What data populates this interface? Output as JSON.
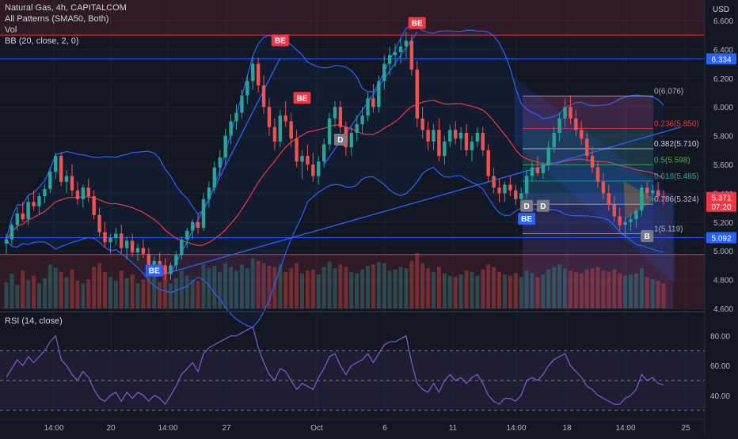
{
  "header": {
    "title": "Natural Gas, 4h, CAPITALCOM",
    "indicators": [
      "All Patterns (SMA50, Both)",
      "Vol",
      "BB (20, close, 2, 0)"
    ],
    "rsi_label": "RSI (14, close)",
    "currency": "USD"
  },
  "colors": {
    "background": "#131722",
    "up": "#26a69a",
    "down": "#ef5350",
    "bb_band": "#2962ff",
    "bb_basis": "#f23645",
    "rsi": "#7e57c2",
    "grid": "#1e2230",
    "level_line": "#2962ff"
  },
  "price_axis": {
    "ticks": [
      "6.600",
      "6.400",
      "6.200",
      "6.000",
      "5.800",
      "5.600",
      "5.400",
      "5.200",
      "5.000",
      "4.800",
      "4.600"
    ],
    "min": 4.6,
    "max": 6.6
  },
  "rsi_axis": {
    "ticks": [
      "80.00",
      "60.00",
      "40.00"
    ],
    "min": 25,
    "max": 92,
    "upper": 70,
    "lower": 30,
    "mid": 50
  },
  "time_axis": {
    "labels": [
      "14:00",
      "20",
      "14:00",
      "27",
      "Oct",
      "6",
      "11",
      "14:00",
      "18",
      "14:00",
      "25"
    ]
  },
  "price_badges": [
    {
      "text": "6.334",
      "value": 6.334,
      "color": "#2962ff"
    },
    {
      "text": "5.371",
      "value": 5.371,
      "color": "#f23645"
    },
    {
      "text": "07:20",
      "value": 5.31,
      "color": "#f23645"
    },
    {
      "text": "5.092",
      "value": 5.092,
      "color": "#2962ff"
    }
  ],
  "horizontal_levels": [
    6.5,
    6.334,
    5.092,
    4.975
  ],
  "fib_levels": [
    {
      "label": "0(6.076)",
      "value": 6.076,
      "color": "#b2b5be"
    },
    {
      "label": "0.236(5.850)",
      "value": 5.85,
      "color": "#f23645"
    },
    {
      "label": "0.382(5.710)",
      "value": 5.71,
      "color": "#d1d4dc"
    },
    {
      "label": "0.5(5.598)",
      "value": 5.598,
      "color": "#4caf50"
    },
    {
      "label": "0.618(5.485)",
      "value": 5.485,
      "color": "#26a69a"
    },
    {
      "label": "0.786(5.324)",
      "value": 5.324,
      "color": "#b2b5be"
    },
    {
      "label": "1(5.119)",
      "value": 5.119,
      "color": "#b2b5be"
    }
  ],
  "pattern_labels": [
    {
      "text": "BE",
      "kind": "bear",
      "value": 6.46,
      "index": 50
    },
    {
      "text": "BE",
      "kind": "bear",
      "value": 6.06,
      "index": 54
    },
    {
      "text": "BE",
      "kind": "bear",
      "value": 6.58,
      "index": 75
    },
    {
      "text": "D",
      "kind": "neutral",
      "value": 5.77,
      "index": 61
    },
    {
      "text": "BE",
      "kind": "bull",
      "value": 4.86,
      "index": 27
    },
    {
      "text": "D",
      "kind": "neutral",
      "value": 5.31,
      "index": 95
    },
    {
      "text": "D",
      "kind": "neutral",
      "value": 5.31,
      "index": 98
    },
    {
      "text": "BE",
      "kind": "bull",
      "value": 5.22,
      "index": 95
    },
    {
      "text": "B",
      "kind": "neutral",
      "value": 5.1,
      "index": 117
    }
  ],
  "chart_data": {
    "type": "candlestick",
    "symbol": "Natural Gas",
    "interval": "4h",
    "candles": [
      [
        5.05,
        5.12,
        4.98,
        5.08
      ],
      [
        5.08,
        5.2,
        5.04,
        5.18
      ],
      [
        5.18,
        5.3,
        5.14,
        5.26
      ],
      [
        5.26,
        5.34,
        5.2,
        5.22
      ],
      [
        5.22,
        5.38,
        5.18,
        5.34
      ],
      [
        5.34,
        5.42,
        5.28,
        5.31
      ],
      [
        5.31,
        5.4,
        5.25,
        5.38
      ],
      [
        5.38,
        5.46,
        5.33,
        5.43
      ],
      [
        5.43,
        5.58,
        5.4,
        5.55
      ],
      [
        5.55,
        5.68,
        5.5,
        5.66
      ],
      [
        5.66,
        5.69,
        5.45,
        5.48
      ],
      [
        5.48,
        5.56,
        5.4,
        5.52
      ],
      [
        5.52,
        5.6,
        5.38,
        5.42
      ],
      [
        5.42,
        5.48,
        5.32,
        5.36
      ],
      [
        5.36,
        5.46,
        5.3,
        5.44
      ],
      [
        5.44,
        5.5,
        5.34,
        5.38
      ],
      [
        5.38,
        5.42,
        5.22,
        5.25
      ],
      [
        5.25,
        5.3,
        5.1,
        5.13
      ],
      [
        5.13,
        5.2,
        5.02,
        5.06
      ],
      [
        5.06,
        5.12,
        4.98,
        5.09
      ],
      [
        5.09,
        5.16,
        5.04,
        5.12
      ],
      [
        5.12,
        5.18,
        4.98,
        5.02
      ],
      [
        5.02,
        5.1,
        4.94,
        5.07
      ],
      [
        5.07,
        5.12,
        4.96,
        4.99
      ],
      [
        4.99,
        5.05,
        4.93,
        5.02
      ],
      [
        5.02,
        5.08,
        4.95,
        4.98
      ],
      [
        4.98,
        5.02,
        4.86,
        4.89
      ],
      [
        4.89,
        4.96,
        4.83,
        4.93
      ],
      [
        4.93,
        4.99,
        4.86,
        4.9
      ],
      [
        4.9,
        4.95,
        4.8,
        4.84
      ],
      [
        4.84,
        4.92,
        4.8,
        4.9
      ],
      [
        4.9,
        5.0,
        4.86,
        4.97
      ],
      [
        4.97,
        5.1,
        4.94,
        5.08
      ],
      [
        5.08,
        5.16,
        5.02,
        5.14
      ],
      [
        5.14,
        5.22,
        5.08,
        5.2
      ],
      [
        5.2,
        5.26,
        5.12,
        5.16
      ],
      [
        5.16,
        5.4,
        5.14,
        5.36
      ],
      [
        5.36,
        5.48,
        5.3,
        5.44
      ],
      [
        5.44,
        5.62,
        5.4,
        5.58
      ],
      [
        5.58,
        5.7,
        5.52,
        5.65
      ],
      [
        5.65,
        5.85,
        5.6,
        5.8
      ],
      [
        5.8,
        5.95,
        5.74,
        5.9
      ],
      [
        5.9,
        6.02,
        5.84,
        5.96
      ],
      [
        5.96,
        6.12,
        5.92,
        6.08
      ],
      [
        6.08,
        6.22,
        6.02,
        6.18
      ],
      [
        6.18,
        6.35,
        6.12,
        6.3
      ],
      [
        6.3,
        6.34,
        6.1,
        6.15
      ],
      [
        6.15,
        6.22,
        5.95,
        6.0
      ],
      [
        6.0,
        6.06,
        5.8,
        5.86
      ],
      [
        5.86,
        5.92,
        5.7,
        5.76
      ],
      [
        5.76,
        5.98,
        5.72,
        5.94
      ],
      [
        5.94,
        6.04,
        5.86,
        5.9
      ],
      [
        5.9,
        5.96,
        5.72,
        5.78
      ],
      [
        5.78,
        5.84,
        5.58,
        5.62
      ],
      [
        5.62,
        5.7,
        5.5,
        5.66
      ],
      [
        5.66,
        5.74,
        5.56,
        5.6
      ],
      [
        5.6,
        5.68,
        5.48,
        5.52
      ],
      [
        5.52,
        5.66,
        5.46,
        5.62
      ],
      [
        5.62,
        5.78,
        5.58,
        5.74
      ],
      [
        5.74,
        5.96,
        5.7,
        5.92
      ],
      [
        5.92,
        6.04,
        5.86,
        6.0
      ],
      [
        6.0,
        6.04,
        5.82,
        5.86
      ],
      [
        5.86,
        5.9,
        5.66,
        5.72
      ],
      [
        5.72,
        5.86,
        5.66,
        5.82
      ],
      [
        5.82,
        5.94,
        5.76,
        5.88
      ],
      [
        5.88,
        6.0,
        5.82,
        5.94
      ],
      [
        5.94,
        6.1,
        5.9,
        6.06
      ],
      [
        6.06,
        6.16,
        5.96,
        6.0
      ],
      [
        6.0,
        6.22,
        5.96,
        6.18
      ],
      [
        6.18,
        6.36,
        6.12,
        6.3
      ],
      [
        6.3,
        6.42,
        6.22,
        6.36
      ],
      [
        6.36,
        6.44,
        6.28,
        6.38
      ],
      [
        6.38,
        6.48,
        6.3,
        6.42
      ],
      [
        6.42,
        6.52,
        6.34,
        6.46
      ],
      [
        6.46,
        6.5,
        6.22,
        6.26
      ],
      [
        6.26,
        6.32,
        5.86,
        5.92
      ],
      [
        5.92,
        6.0,
        5.78,
        5.84
      ],
      [
        5.84,
        5.9,
        5.7,
        5.76
      ],
      [
        5.76,
        5.88,
        5.7,
        5.84
      ],
      [
        5.84,
        5.92,
        5.62,
        5.66
      ],
      [
        5.66,
        5.8,
        5.6,
        5.76
      ],
      [
        5.76,
        5.88,
        5.72,
        5.84
      ],
      [
        5.84,
        5.9,
        5.74,
        5.78
      ],
      [
        5.78,
        5.86,
        5.7,
        5.82
      ],
      [
        5.82,
        5.88,
        5.66,
        5.7
      ],
      [
        5.7,
        5.8,
        5.62,
        5.76
      ],
      [
        5.76,
        5.86,
        5.72,
        5.82
      ],
      [
        5.82,
        5.86,
        5.66,
        5.7
      ],
      [
        5.7,
        5.74,
        5.48,
        5.52
      ],
      [
        5.52,
        5.58,
        5.4,
        5.44
      ],
      [
        5.44,
        5.5,
        5.34,
        5.4
      ],
      [
        5.4,
        5.48,
        5.34,
        5.46
      ],
      [
        5.46,
        5.52,
        5.38,
        5.42
      ],
      [
        5.42,
        5.46,
        5.32,
        5.36
      ],
      [
        5.36,
        5.44,
        5.3,
        5.4
      ],
      [
        5.4,
        5.56,
        5.36,
        5.52
      ],
      [
        5.52,
        5.62,
        5.48,
        5.58
      ],
      [
        5.58,
        5.66,
        5.52,
        5.54
      ],
      [
        5.54,
        5.62,
        5.5,
        5.6
      ],
      [
        5.6,
        5.76,
        5.56,
        5.72
      ],
      [
        5.72,
        5.86,
        5.68,
        5.82
      ],
      [
        5.82,
        5.96,
        5.76,
        5.92
      ],
      [
        5.92,
        6.06,
        5.86,
        6.0
      ],
      [
        6.0,
        6.08,
        5.88,
        5.92
      ],
      [
        5.92,
        5.98,
        5.8,
        5.84
      ],
      [
        5.84,
        5.9,
        5.74,
        5.78
      ],
      [
        5.78,
        5.82,
        5.62,
        5.66
      ],
      [
        5.66,
        5.72,
        5.54,
        5.58
      ],
      [
        5.58,
        5.62,
        5.44,
        5.48
      ],
      [
        5.48,
        5.54,
        5.36,
        5.4
      ],
      [
        5.4,
        5.46,
        5.28,
        5.32
      ],
      [
        5.32,
        5.38,
        5.2,
        5.24
      ],
      [
        5.24,
        5.3,
        5.14,
        5.18
      ],
      [
        5.18,
        5.24,
        5.1,
        5.2
      ],
      [
        5.2,
        5.26,
        5.14,
        5.22
      ],
      [
        5.22,
        5.3,
        5.16,
        5.28
      ],
      [
        5.28,
        5.46,
        5.24,
        5.44
      ],
      [
        5.44,
        5.48,
        5.36,
        5.4
      ],
      [
        5.4,
        5.46,
        5.34,
        5.42
      ],
      [
        5.42,
        5.48,
        5.36,
        5.38
      ],
      [
        5.38,
        5.42,
        5.32,
        5.37
      ]
    ],
    "volume": [
      42,
      55,
      38,
      60,
      45,
      52,
      40,
      48,
      70,
      65,
      58,
      50,
      62,
      44,
      40,
      46,
      66,
      72,
      58,
      50,
      44,
      60,
      48,
      54,
      40,
      46,
      62,
      50,
      42,
      56,
      40,
      48,
      60,
      52,
      46,
      44,
      70,
      64,
      68,
      58,
      72,
      66,
      60,
      70,
      64,
      80,
      76,
      72,
      68,
      66,
      70,
      58,
      64,
      72,
      56,
      60,
      62,
      54,
      66,
      74,
      64,
      70,
      66,
      58,
      56,
      62,
      68,
      70,
      74,
      72,
      60,
      62,
      66,
      64,
      76,
      88,
      72,
      64,
      58,
      66,
      56,
      52,
      50,
      54,
      60,
      58,
      52,
      62,
      70,
      66,
      58,
      54,
      52,
      56,
      50,
      60,
      56,
      50,
      54,
      62,
      66,
      70,
      64,
      60,
      58,
      56,
      62,
      64,
      66,
      60,
      58,
      62,
      56,
      52,
      54,
      56,
      64,
      50,
      46,
      44,
      40
    ],
    "rsi": [
      52,
      58,
      64,
      60,
      66,
      62,
      66,
      70,
      76,
      80,
      64,
      60,
      54,
      50,
      56,
      52,
      44,
      38,
      36,
      40,
      42,
      36,
      42,
      38,
      42,
      40,
      36,
      40,
      38,
      34,
      40,
      46,
      54,
      58,
      62,
      56,
      68,
      72,
      74,
      76,
      78,
      80,
      80,
      82,
      84,
      86,
      72,
      62,
      54,
      50,
      58,
      56,
      50,
      44,
      48,
      46,
      44,
      52,
      58,
      66,
      68,
      60,
      54,
      60,
      62,
      64,
      68,
      62,
      68,
      74,
      76,
      76,
      78,
      80,
      62,
      48,
      44,
      42,
      48,
      42,
      50,
      54,
      50,
      52,
      48,
      52,
      54,
      48,
      40,
      36,
      34,
      38,
      38,
      36,
      40,
      50,
      52,
      50,
      54,
      60,
      64,
      66,
      68,
      60,
      56,
      52,
      46,
      44,
      40,
      38,
      36,
      34,
      34,
      38,
      40,
      44,
      54,
      50,
      52,
      48,
      47
    ]
  }
}
